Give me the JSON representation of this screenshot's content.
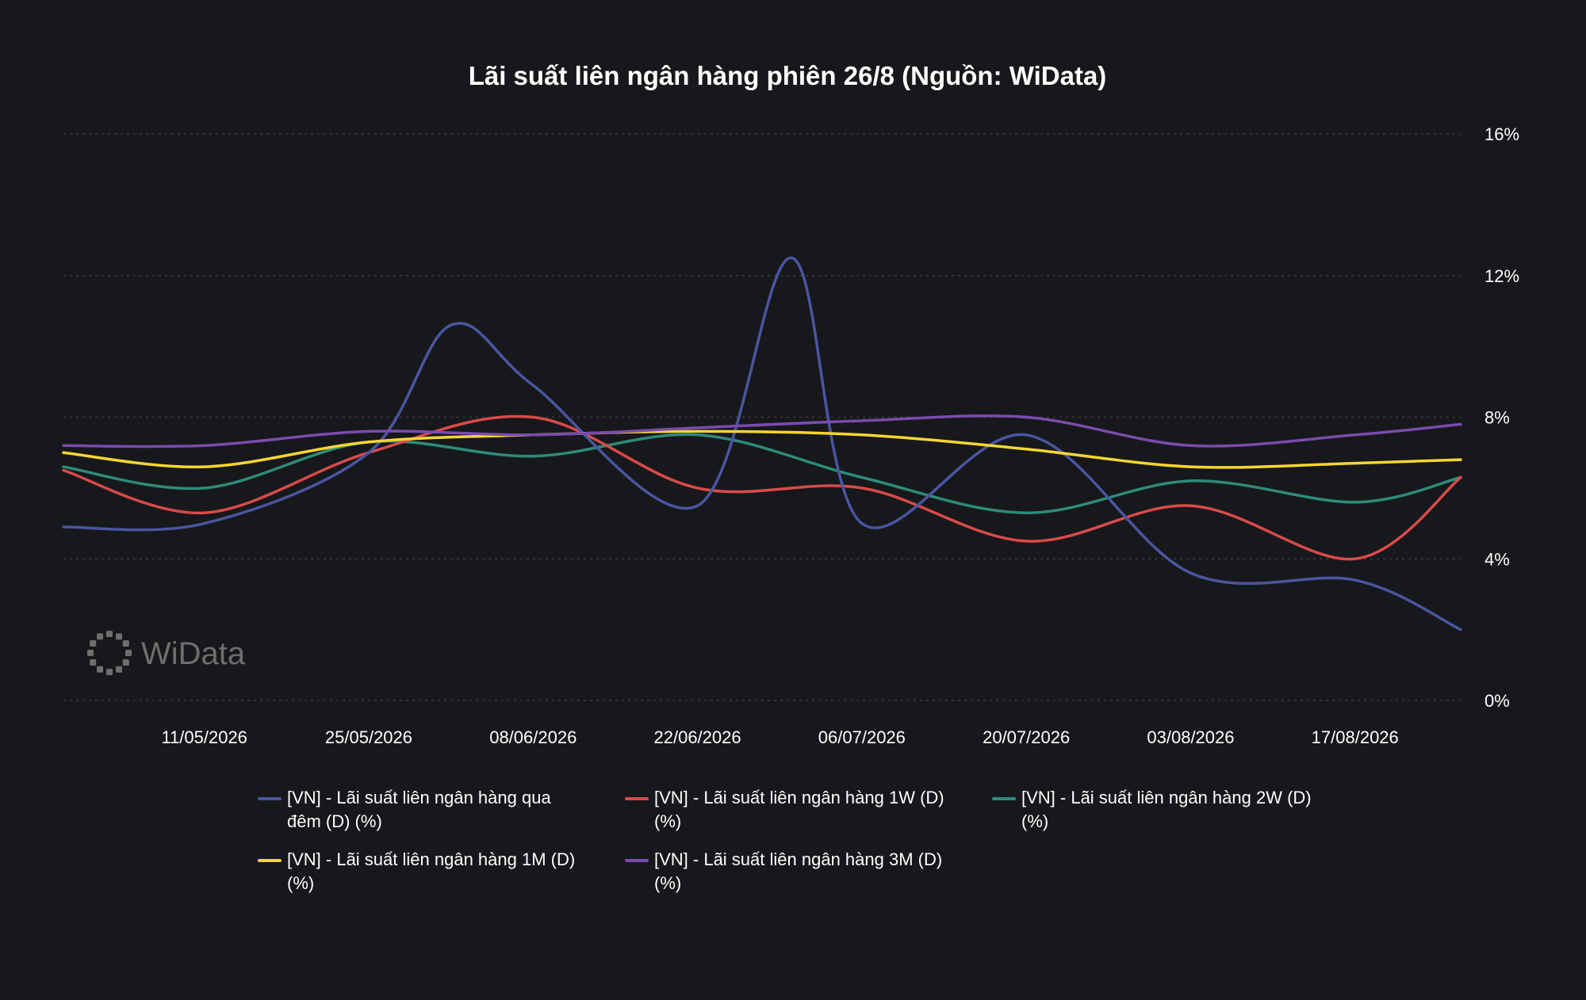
{
  "chart_data": {
    "type": "line",
    "title": "Lãi suất liên ngân hàng phiên 26/8 (Nguồn: WiData)",
    "watermark": "WiData",
    "x": [
      "2026-04-29",
      "2026-05-11",
      "2026-05-25",
      "2026-06-08",
      "2026-06-22",
      "2026-07-06",
      "2026-07-20",
      "2026-08-03",
      "2026-08-17",
      "2026-08-26"
    ],
    "x_tick_labels": [
      "11/05/2026",
      "25/05/2026",
      "08/06/2026",
      "22/06/2026",
      "06/07/2026",
      "20/07/2026",
      "03/08/2026",
      "17/08/2026"
    ],
    "y_tick_labels": [
      "0%",
      "4%",
      "8%",
      "12%",
      "16%"
    ],
    "ylim": [
      0,
      16
    ],
    "y_axis_side": "right",
    "grid": true,
    "legend_position": "bottom",
    "series": [
      {
        "name": "[VN] - Lãi suất liên ngân hàng qua đêm (D) (%)",
        "color": "#4a55a2",
        "values": [
          4.9,
          5.0,
          7.0,
          8.9,
          5.5,
          5.0,
          7.5,
          3.6,
          3.4,
          2.0
        ],
        "peak": {
          "date": "2026-06-30",
          "value": 12.5
        },
        "peak2": {
          "date": "2026-06-01",
          "value": 10.6
        }
      },
      {
        "name": "[VN] - Lãi suất liên ngân hàng 1W (D) (%)",
        "color": "#d94a4a",
        "values": [
          6.5,
          5.3,
          7.0,
          8.0,
          6.0,
          6.0,
          4.5,
          5.5,
          4.0,
          6.3
        ]
      },
      {
        "name": "[VN] - Lãi suất liên ngân hàng 2W (D) (%)",
        "color": "#2e8b7a",
        "values": [
          6.6,
          6.0,
          7.3,
          6.9,
          7.5,
          6.3,
          5.3,
          6.2,
          5.6,
          6.3
        ]
      },
      {
        "name": "[VN] - Lãi suất liên ngân hàng 1M (D) (%)",
        "color": "#f5d631",
        "values": [
          7.0,
          6.6,
          7.3,
          7.5,
          7.6,
          7.5,
          7.1,
          6.6,
          6.7,
          6.8
        ]
      },
      {
        "name": "[VN] - Lãi suất liên ngân hàng 3M (D) (%)",
        "color": "#7a4bb0",
        "values": [
          7.2,
          7.2,
          7.6,
          7.5,
          7.7,
          7.9,
          8.0,
          7.2,
          7.5,
          7.8
        ]
      }
    ]
  }
}
